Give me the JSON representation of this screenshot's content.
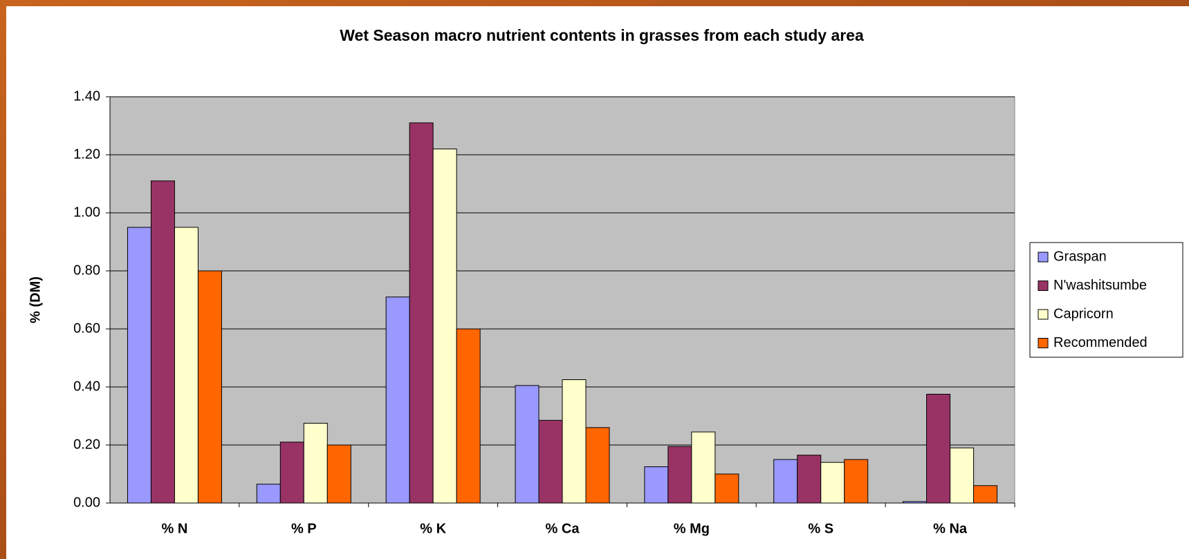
{
  "chart_data": {
    "type": "bar",
    "title": "Wet Season macro nutrient contents in grasses from each study area",
    "y_label": "% (DM)",
    "categories": [
      "% N",
      "% P",
      "% K",
      "% Ca",
      "% Mg",
      "% S",
      "% Na"
    ],
    "series": [
      {
        "name": "Graspan",
        "color": "#9999ff",
        "values": [
          0.95,
          0.065,
          0.71,
          0.405,
          0.125,
          0.15,
          0.005
        ]
      },
      {
        "name": "N'washitsumbe",
        "color": "#993366",
        "values": [
          1.11,
          0.21,
          1.31,
          0.285,
          0.195,
          0.165,
          0.375
        ]
      },
      {
        "name": "Capricorn",
        "color": "#ffffcc",
        "values": [
          0.95,
          0.275,
          1.22,
          0.425,
          0.245,
          0.14,
          0.19
        ]
      },
      {
        "name": "Recommended",
        "color": "#ff6600",
        "values": [
          0.8,
          0.2,
          0.6,
          0.26,
          0.1,
          0.15,
          0.06
        ]
      }
    ],
    "ylim": [
      0,
      1.4
    ],
    "yticks": [
      {
        "value": 0,
        "label": "0.00"
      },
      {
        "value": 0.2,
        "label": "0.20"
      },
      {
        "value": 0.4,
        "label": "0.40"
      },
      {
        "value": 0.6,
        "label": "0.60"
      },
      {
        "value": 0.8,
        "label": "0.80"
      },
      {
        "value": 1.0,
        "label": "1.00"
      },
      {
        "value": 1.2,
        "label": "1.20"
      },
      {
        "value": 1.4,
        "label": "1.40"
      }
    ],
    "grid": true,
    "legend": "right"
  }
}
